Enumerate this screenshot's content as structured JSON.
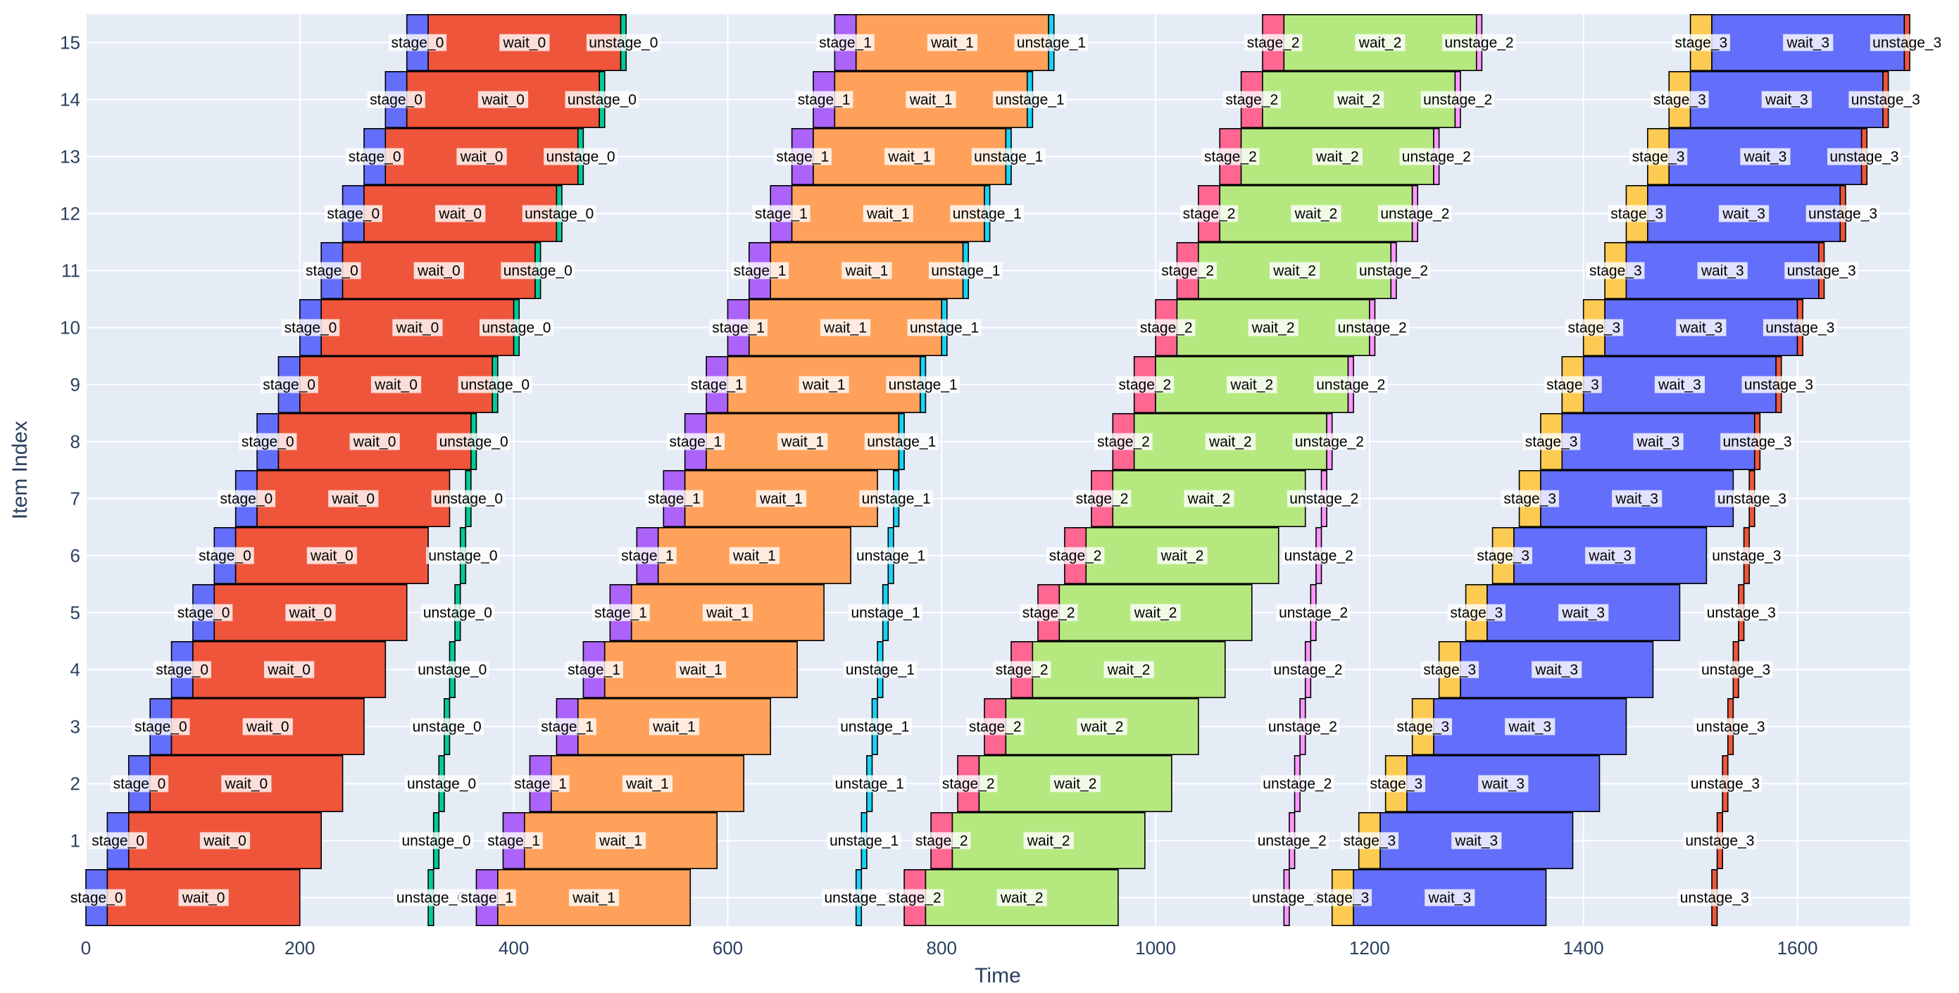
{
  "chart_data": {
    "type": "bar",
    "orientation": "horizontal",
    "xlabel": "Time",
    "ylabel": "Item Index",
    "xlim": [
      0,
      1705
    ],
    "ylim": [
      -0.5,
      15.5
    ],
    "grid": true,
    "legend": "none",
    "x_ticks": [
      0,
      200,
      400,
      600,
      800,
      1000,
      1200,
      1400,
      1600
    ],
    "y_ticks": [
      1,
      2,
      3,
      4,
      5,
      6,
      7,
      8,
      9,
      10,
      11,
      12,
      13,
      14,
      15
    ],
    "items": [
      0,
      1,
      2,
      3,
      4,
      5,
      6,
      7,
      8,
      9,
      10,
      11,
      12,
      13,
      14,
      15
    ],
    "background_color": "#e5ecf6",
    "stages": [
      {
        "stage_label": "stage_0",
        "wait_label": "wait_0",
        "unstage_label": "unstage_0",
        "stage_color": "#636efa",
        "wait_color": "#ef553b",
        "unstage_color": "#00cc96",
        "stage_start": [
          0,
          20,
          40,
          60,
          80,
          100,
          120,
          140,
          160,
          180,
          200,
          220,
          240,
          260,
          280,
          300
        ],
        "stage_end": [
          20,
          40,
          60,
          80,
          100,
          120,
          140,
          160,
          180,
          200,
          220,
          240,
          260,
          280,
          300,
          320
        ],
        "wait_end": [
          200,
          220,
          240,
          260,
          280,
          300,
          320,
          340,
          360,
          380,
          400,
          420,
          440,
          460,
          480,
          500
        ],
        "unstage_start": [
          320,
          325,
          330,
          335,
          340,
          345,
          350,
          355,
          360,
          380,
          400,
          420,
          440,
          460,
          480,
          500
        ],
        "unstage_end": [
          325,
          330,
          335,
          340,
          345,
          350,
          355,
          360,
          365,
          385,
          405,
          425,
          445,
          465,
          485,
          505
        ]
      },
      {
        "stage_label": "stage_1",
        "wait_label": "wait_1",
        "unstage_label": "unstage_1",
        "stage_color": "#ab63fa",
        "wait_color": "#ffa15a",
        "unstage_color": "#19d3f3",
        "stage_start": [
          365,
          390,
          415,
          440,
          465,
          490,
          515,
          540,
          560,
          580,
          600,
          620,
          640,
          660,
          680,
          700
        ],
        "stage_end": [
          385,
          410,
          435,
          460,
          485,
          510,
          535,
          560,
          580,
          600,
          620,
          640,
          660,
          680,
          700,
          720
        ],
        "wait_end": [
          565,
          590,
          615,
          640,
          665,
          690,
          715,
          740,
          760,
          780,
          800,
          820,
          840,
          860,
          880,
          900
        ],
        "unstage_start": [
          720,
          725,
          730,
          735,
          740,
          745,
          750,
          755,
          760,
          780,
          800,
          820,
          840,
          860,
          880,
          900
        ],
        "unstage_end": [
          725,
          730,
          735,
          740,
          745,
          750,
          755,
          760,
          765,
          785,
          805,
          825,
          845,
          865,
          885,
          905
        ]
      },
      {
        "stage_label": "stage_2",
        "wait_label": "wait_2",
        "unstage_label": "unstage_2",
        "stage_color": "#ff6692",
        "wait_color": "#b6e880",
        "unstage_color": "#ff97ff",
        "stage_start": [
          765,
          790,
          815,
          840,
          865,
          890,
          915,
          940,
          960,
          980,
          1000,
          1020,
          1040,
          1060,
          1080,
          1100
        ],
        "stage_end": [
          785,
          810,
          835,
          860,
          885,
          910,
          935,
          960,
          980,
          1000,
          1020,
          1040,
          1060,
          1080,
          1100,
          1120
        ],
        "wait_end": [
          965,
          990,
          1015,
          1040,
          1065,
          1090,
          1115,
          1140,
          1160,
          1180,
          1200,
          1220,
          1240,
          1260,
          1280,
          1300
        ],
        "unstage_start": [
          1120,
          1125,
          1130,
          1135,
          1140,
          1145,
          1150,
          1155,
          1160,
          1180,
          1200,
          1220,
          1240,
          1260,
          1280,
          1300
        ],
        "unstage_end": [
          1125,
          1130,
          1135,
          1140,
          1145,
          1150,
          1155,
          1160,
          1165,
          1185,
          1205,
          1225,
          1245,
          1265,
          1285,
          1305
        ]
      },
      {
        "stage_label": "stage_3",
        "wait_label": "wait_3",
        "unstage_label": "unstage_3",
        "stage_color": "#fecb52",
        "wait_color": "#636efa",
        "unstage_color": "#ef553b",
        "stage_start": [
          1165,
          1190,
          1215,
          1240,
          1265,
          1290,
          1315,
          1340,
          1360,
          1380,
          1400,
          1420,
          1440,
          1460,
          1480,
          1500
        ],
        "stage_end": [
          1185,
          1210,
          1235,
          1260,
          1285,
          1310,
          1335,
          1360,
          1380,
          1400,
          1420,
          1440,
          1460,
          1480,
          1500,
          1520
        ],
        "wait_end": [
          1365,
          1390,
          1415,
          1440,
          1465,
          1490,
          1515,
          1540,
          1560,
          1580,
          1600,
          1620,
          1640,
          1660,
          1680,
          1700
        ],
        "unstage_start": [
          1520,
          1525,
          1530,
          1535,
          1540,
          1545,
          1550,
          1555,
          1560,
          1580,
          1600,
          1620,
          1640,
          1660,
          1680,
          1700
        ],
        "unstage_end": [
          1525,
          1530,
          1535,
          1540,
          1545,
          1550,
          1555,
          1560,
          1565,
          1585,
          1605,
          1625,
          1645,
          1665,
          1685,
          1705
        ]
      }
    ]
  }
}
